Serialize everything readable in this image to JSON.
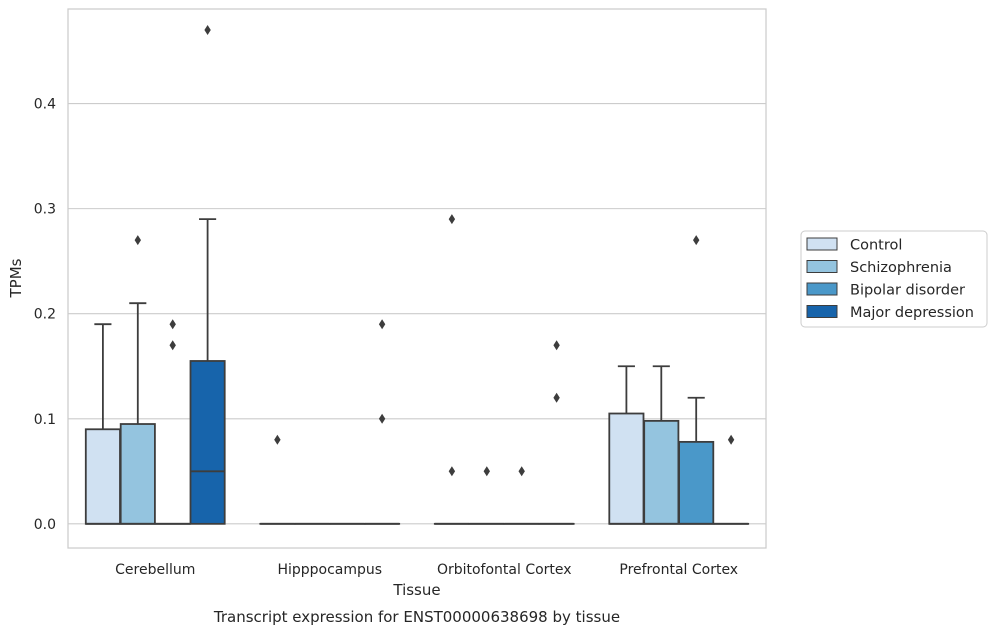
{
  "chart_data": {
    "type": "box",
    "title": "",
    "caption": "Transcript expression for ENST00000638698 by tissue",
    "xlabel": "Tissue",
    "ylabel": "TPMs",
    "ylim": [
      -0.023,
      0.49
    ],
    "yticks": [
      0.0,
      0.1,
      0.2,
      0.3,
      0.4
    ],
    "ytick_labels": [
      "0.0",
      "0.1",
      "0.2",
      "0.3",
      "0.4"
    ],
    "grid": true,
    "legend_position": "right",
    "categories": [
      "Cerebellum",
      "Hipppocampus",
      "Orbitofontal Cortex",
      "Prefrontal Cortex"
    ],
    "series": [
      {
        "name": "Control",
        "color": "#d0e1f2",
        "boxes": [
          {
            "q1": 0.0,
            "median": 0.0,
            "q3": 0.09,
            "whislo": 0.0,
            "whishi": 0.19,
            "fliers": []
          },
          {
            "q1": 0.0,
            "median": 0.0,
            "q3": 0.0,
            "whislo": 0.0,
            "whishi": 0.0,
            "fliers": [
              0.08
            ]
          },
          {
            "q1": 0.0,
            "median": 0.0,
            "q3": 0.0,
            "whislo": 0.0,
            "whishi": 0.0,
            "fliers": [
              0.29,
              0.05
            ]
          },
          {
            "q1": 0.0,
            "median": 0.0,
            "q3": 0.105,
            "whislo": 0.0,
            "whishi": 0.15,
            "fliers": []
          }
        ]
      },
      {
        "name": "Schizophrenia",
        "color": "#94c4df",
        "boxes": [
          {
            "q1": 0.0,
            "median": 0.0,
            "q3": 0.095,
            "whislo": 0.0,
            "whishi": 0.21,
            "fliers": [
              0.27
            ]
          },
          {
            "q1": 0.0,
            "median": 0.0,
            "q3": 0.0,
            "whislo": 0.0,
            "whishi": 0.0,
            "fliers": []
          },
          {
            "q1": 0.0,
            "median": 0.0,
            "q3": 0.0,
            "whislo": 0.0,
            "whishi": 0.0,
            "fliers": [
              0.05
            ]
          },
          {
            "q1": 0.0,
            "median": 0.0,
            "q3": 0.098,
            "whislo": 0.0,
            "whishi": 0.15,
            "fliers": []
          }
        ]
      },
      {
        "name": "Bipolar disorder",
        "color": "#4a98c9",
        "boxes": [
          {
            "q1": 0.0,
            "median": 0.0,
            "q3": 0.0,
            "whislo": 0.0,
            "whishi": 0.0,
            "fliers": [
              0.19,
              0.17
            ]
          },
          {
            "q1": 0.0,
            "median": 0.0,
            "q3": 0.0,
            "whislo": 0.0,
            "whishi": 0.0,
            "fliers": []
          },
          {
            "q1": 0.0,
            "median": 0.0,
            "q3": 0.0,
            "whislo": 0.0,
            "whishi": 0.0,
            "fliers": [
              0.05
            ]
          },
          {
            "q1": 0.0,
            "median": 0.0,
            "q3": 0.078,
            "whislo": 0.0,
            "whishi": 0.12,
            "fliers": [
              0.27
            ]
          }
        ]
      },
      {
        "name": "Major depression",
        "color": "#1764ab",
        "boxes": [
          {
            "q1": 0.0,
            "median": 0.05,
            "q3": 0.155,
            "whislo": 0.0,
            "whishi": 0.29,
            "fliers": [
              0.47
            ]
          },
          {
            "q1": 0.0,
            "median": 0.0,
            "q3": 0.0,
            "whislo": 0.0,
            "whishi": 0.0,
            "fliers": [
              0.19,
              0.1
            ]
          },
          {
            "q1": 0.0,
            "median": 0.0,
            "q3": 0.0,
            "whislo": 0.0,
            "whishi": 0.0,
            "fliers": [
              0.17,
              0.12
            ]
          },
          {
            "q1": 0.0,
            "median": 0.0,
            "q3": 0.0,
            "whislo": 0.0,
            "whishi": 0.0,
            "fliers": [
              0.08
            ]
          }
        ]
      }
    ]
  }
}
